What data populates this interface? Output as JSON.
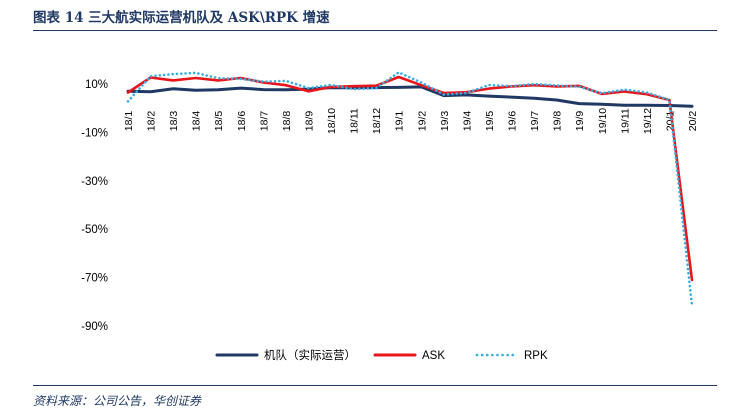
{
  "header": {
    "title": "图表 14 三大航实际运营机队及 ASK\\RPK 增速"
  },
  "footer": {
    "source": "资料来源：公司公告，华创证券"
  },
  "chart_data": {
    "type": "line",
    "title": "",
    "xlabel": "",
    "ylabel": "",
    "categories": [
      "18/1",
      "18/2",
      "18/3",
      "18/4",
      "18/5",
      "18/6",
      "18/7",
      "18/8",
      "18/9",
      "18/10",
      "18/11",
      "18/12",
      "19/1",
      "19/2",
      "19/3",
      "19/4",
      "19/5",
      "19/6",
      "19/7",
      "19/8",
      "19/9",
      "19/10",
      "19/11",
      "19/12",
      "20/1",
      "20/2"
    ],
    "yticks": [
      "10%",
      "-10%",
      "-30%",
      "-50%",
      "-70%",
      "-90%"
    ],
    "ytick_values": [
      10,
      -10,
      -30,
      -50,
      -70,
      -90
    ],
    "ylim": [
      -90,
      10
    ],
    "grid": false,
    "legend_position": "bottom",
    "series": [
      {
        "name": "机队（实际运营）",
        "color": "#1f3864",
        "dash": "solid",
        "values": [
          7.0,
          6.8,
          8.0,
          7.4,
          7.6,
          8.3,
          7.7,
          7.6,
          7.9,
          8.5,
          8.4,
          8.5,
          8.6,
          8.8,
          5.2,
          5.5,
          5.0,
          4.6,
          4.1,
          3.4,
          1.9,
          1.6,
          1.2,
          1.2,
          1.1,
          0.8
        ]
      },
      {
        "name": "ASK",
        "color": "#e8151b",
        "dash": "solid",
        "values": [
          6.5,
          12.7,
          11.5,
          12.5,
          11.5,
          12.5,
          10.6,
          9.5,
          7.0,
          8.8,
          9.1,
          9.3,
          12.9,
          9.5,
          6.3,
          6.6,
          8.1,
          9.0,
          9.5,
          9.0,
          9.2,
          5.9,
          6.9,
          5.8,
          3.4,
          -71.0
        ]
      },
      {
        "name": "RPK",
        "color": "#36aee3",
        "dash": "dotted",
        "values": [
          2.8,
          13.2,
          14.1,
          14.6,
          12.4,
          12.1,
          11.0,
          11.3,
          8.3,
          9.6,
          7.9,
          8.3,
          14.8,
          10.6,
          5.6,
          6.3,
          9.6,
          9.1,
          10.0,
          9.4,
          8.9,
          6.2,
          7.7,
          6.5,
          3.4,
          -81.6
        ]
      }
    ]
  }
}
